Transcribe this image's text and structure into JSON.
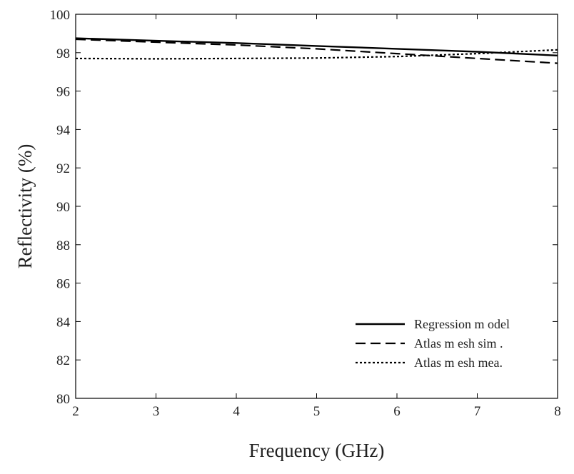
{
  "chart_data": {
    "type": "line",
    "title": "",
    "xlabel": "Frequency (GHz)",
    "ylabel": "Reflectivity (%)",
    "xlim": [
      2,
      8
    ],
    "ylim": [
      80,
      100
    ],
    "xticks": [
      2,
      3,
      4,
      5,
      6,
      7,
      8
    ],
    "yticks": [
      80,
      82,
      84,
      86,
      88,
      90,
      92,
      94,
      96,
      98,
      100
    ],
    "grid": false,
    "legend_position": "bottom-right",
    "series": [
      {
        "name": "Regression m odel",
        "style": "solid",
        "color": "#000000",
        "x": [
          2,
          3,
          4,
          5,
          6,
          7,
          8
        ],
        "y": [
          98.75,
          98.62,
          98.5,
          98.35,
          98.2,
          98.05,
          97.85
        ]
      },
      {
        "name": "Atlas m esh sim .",
        "style": "dashed",
        "color": "#000000",
        "x": [
          2,
          3,
          4,
          5,
          6,
          7,
          8
        ],
        "y": [
          98.7,
          98.55,
          98.4,
          98.2,
          97.95,
          97.7,
          97.45
        ]
      },
      {
        "name": "Atlas m esh mea.",
        "style": "dotted",
        "color": "#000000",
        "x": [
          2,
          3,
          4,
          5,
          6,
          7,
          8
        ],
        "y": [
          97.7,
          97.68,
          97.7,
          97.72,
          97.8,
          97.95,
          98.15
        ]
      }
    ]
  }
}
